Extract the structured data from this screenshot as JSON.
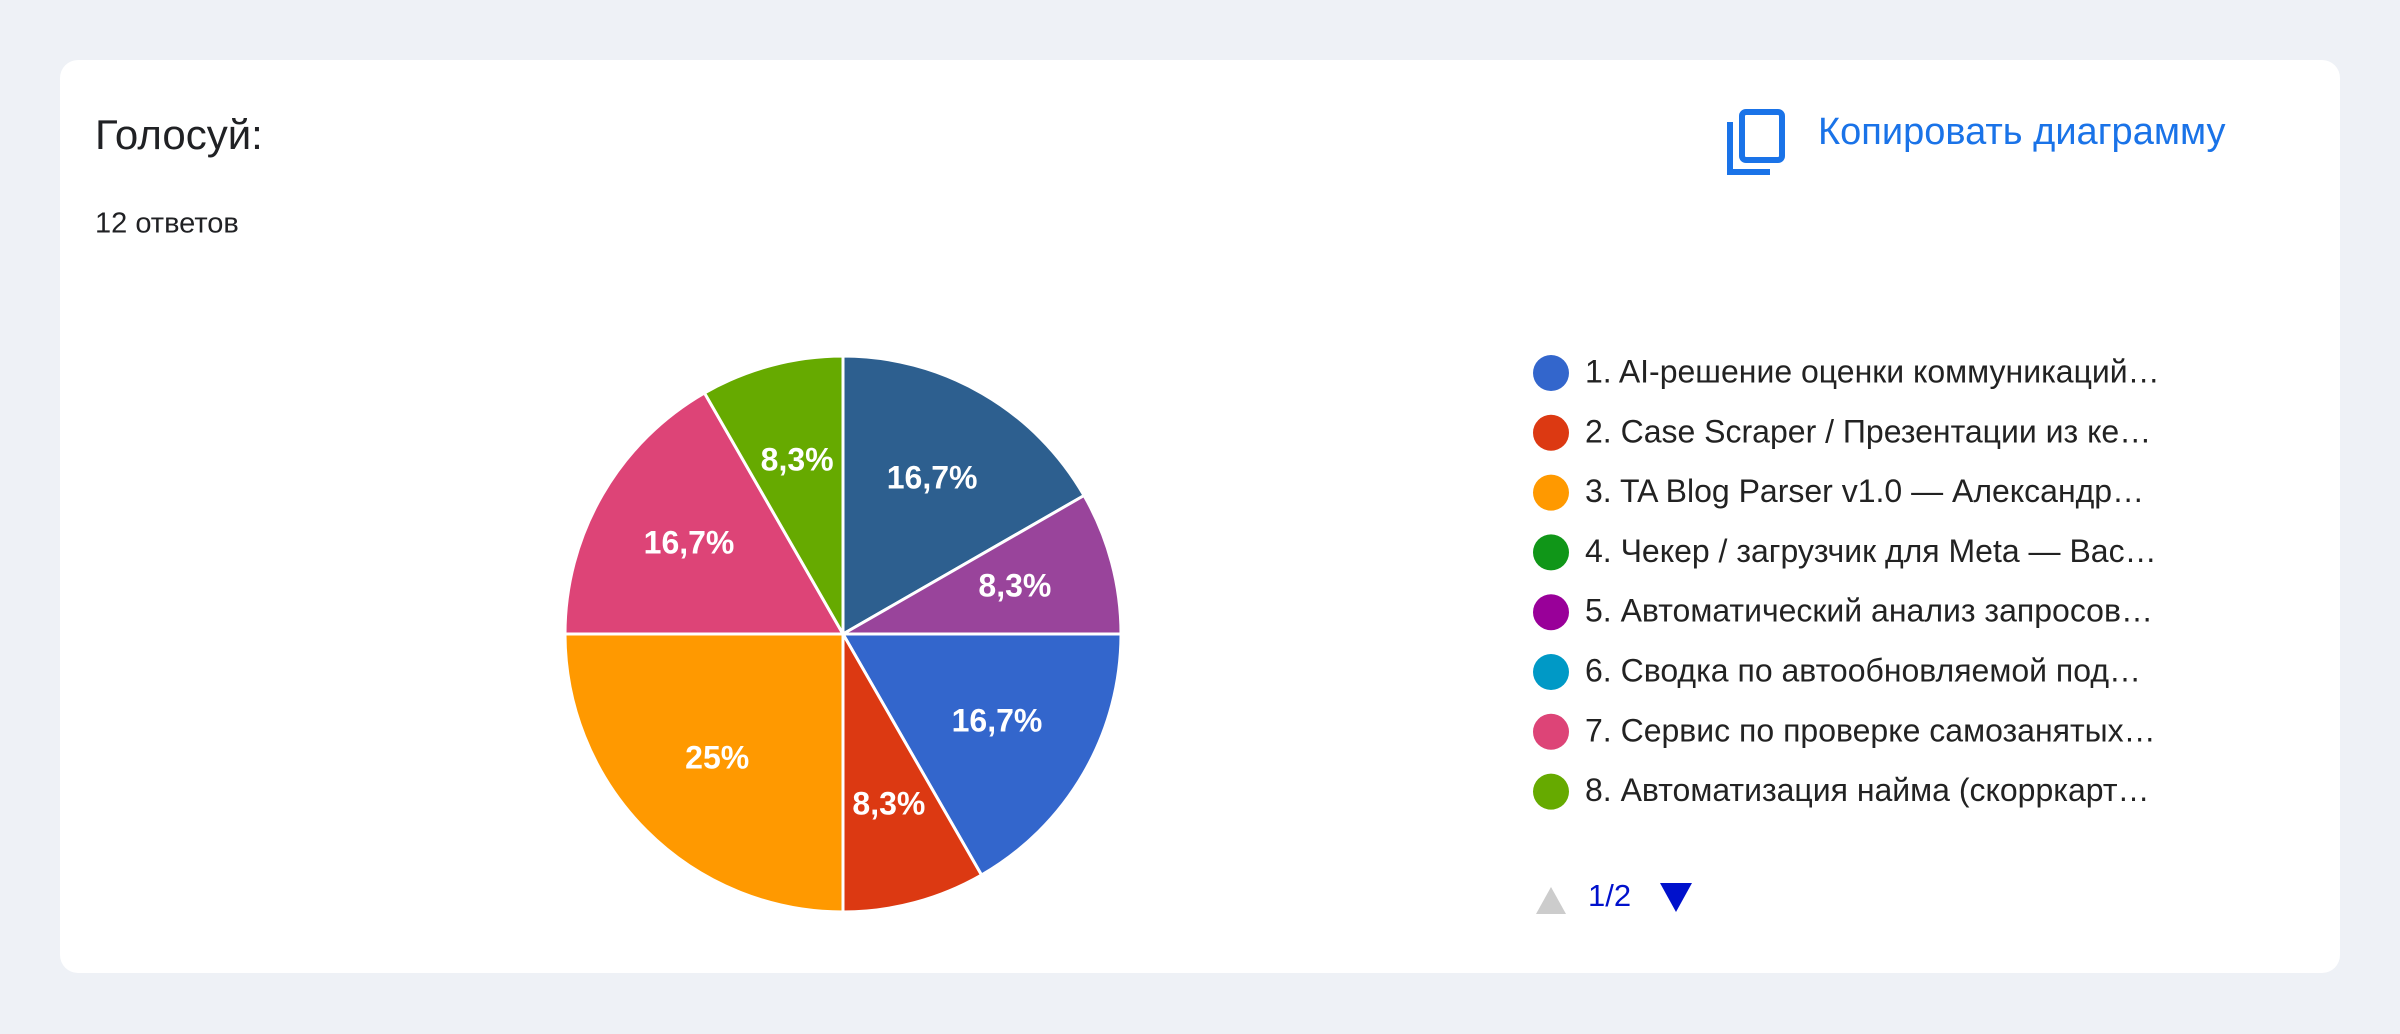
{
  "header": {
    "title": "Голосуй:",
    "responses": "12 ответов",
    "copy_button": "Копировать диаграмму"
  },
  "chart_data": {
    "type": "pie",
    "values": [
      16.7,
      8.3,
      16.7,
      8.3,
      25,
      16.7,
      8.3
    ],
    "value_labels": [
      "16,7%",
      "8,3%",
      "16,7%",
      "8,3%",
      "25%",
      "16,7%",
      "8,3%"
    ],
    "colors": [
      "#2d5f8f",
      "#99449b",
      "#3366cc",
      "#dc3912",
      "#ff9900",
      "#dd4477",
      "#66aa00"
    ],
    "legend": [
      {
        "name": "1. AI-решение оценки коммуникаций…",
        "color": "#3366cc"
      },
      {
        "name": "2. Case Scraper / Презентации из ке…",
        "color": "#dc3912"
      },
      {
        "name": "3. TA Blog Parser v1.0 — Александр…",
        "color": "#ff9900"
      },
      {
        "name": "4. Чекер / загрузчик для Meta — Вас…",
        "color": "#109618"
      },
      {
        "name": "5. Автоматический анализ запросов…",
        "color": "#990099"
      },
      {
        "name": "6. Сводка по автообновляемой под…",
        "color": "#0099c6"
      },
      {
        "name": "7. Сервис по проверке самозанятых…",
        "color": "#dd4477"
      },
      {
        "name": "8. Автоматизация найма (скорркарт…",
        "color": "#66aa00"
      }
    ],
    "legend_page": "1/2"
  }
}
